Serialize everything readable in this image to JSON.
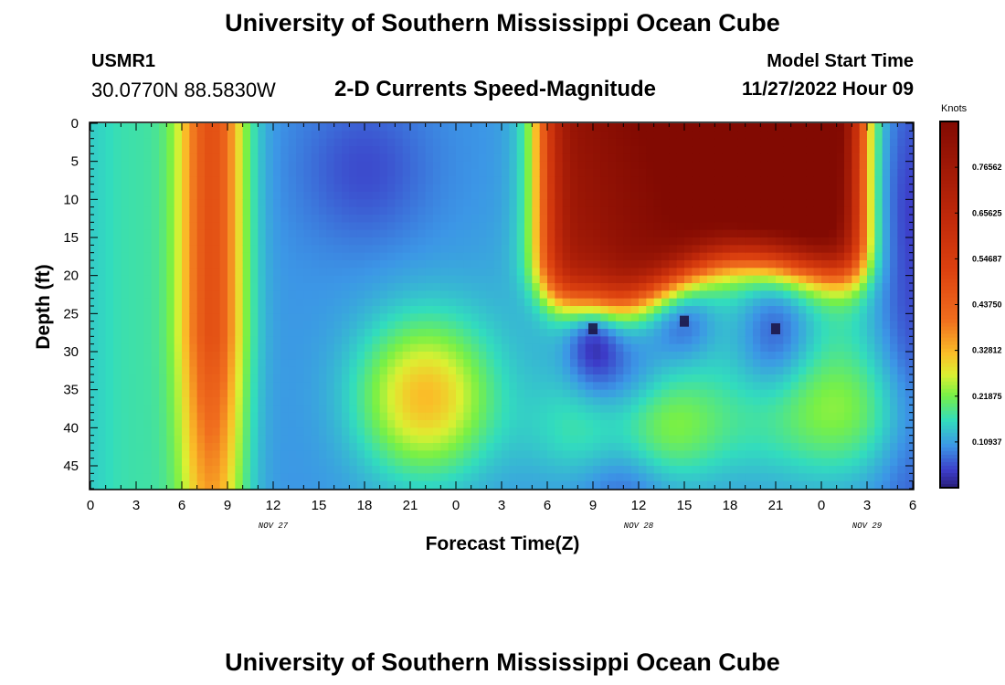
{
  "header": {
    "title": "University of Southern Mississippi Ocean Cube",
    "station_name": "USMR1",
    "station_coords": "30.0770N  88.5830W",
    "subtitle": "2-D Currents Speed-Magnitude",
    "model_start_label": "Model Start Time",
    "model_start_value": "11/27/2022 Hour 09"
  },
  "footer": {
    "title": "University of Southern Mississippi Ocean Cube"
  },
  "chart_data": {
    "type": "heatmap",
    "title": "2-D Currents Speed-Magnitude",
    "xlabel": "Forecast Time(Z)",
    "ylabel": "Depth (ft)",
    "colorbar_unit": "Knots",
    "x_tick_labels": [
      "0",
      "3",
      "6",
      "9",
      "12",
      "15",
      "18",
      "21",
      "0",
      "3",
      "6",
      "9",
      "12",
      "15",
      "18",
      "21",
      "0",
      "3",
      "6"
    ],
    "x_date_labels": [
      {
        "text": "NOV 27",
        "hour_index": 12
      },
      {
        "text": "NOV 28",
        "hour_index": 36
      },
      {
        "text": "NOV 29",
        "hour_index": 51
      }
    ],
    "x_range_hours": [
      0,
      54
    ],
    "y_tick_labels": [
      "0",
      "5",
      "10",
      "15",
      "20",
      "25",
      "30",
      "35",
      "40",
      "45"
    ],
    "y_range_ft": [
      0,
      48
    ],
    "y_inverted": true,
    "colorbar_labels": [
      "0.76562",
      "0.65625",
      "0.54687",
      "0.43750",
      "0.32812",
      "0.21875",
      "0.10937"
    ],
    "colorbar_range": [
      0,
      0.875
    ],
    "colors": {
      "low": "#3b3fbf",
      "mid_low": "#2fb8e8",
      "mid": "#7ef05a",
      "mid_high": "#f7e23a",
      "high": "#f08a20",
      "higher": "#d8400e",
      "max": "#8a1004"
    },
    "features": [
      {
        "description": "surface-to-bottom core",
        "hours": [
          6,
          10
        ],
        "depth_ft": [
          0,
          45
        ],
        "speed_knots": 0.45
      },
      {
        "description": "upper-layer high speed",
        "hours": [
          29,
          50
        ],
        "depth_ft": [
          0,
          22
        ],
        "speed_knots": 0.8
      },
      {
        "description": "mid-depth patch",
        "hours": [
          20,
          24
        ],
        "depth_ft": [
          30,
          42
        ],
        "speed_knots": 0.33
      },
      {
        "description": "near-zero point",
        "hours": [
          33,
          33
        ],
        "depth_ft": [
          27,
          27
        ],
        "speed_knots": 0.0
      },
      {
        "description": "near-zero point",
        "hours": [
          45,
          45
        ],
        "depth_ft": [
          27,
          27
        ],
        "speed_knots": 0.02
      },
      {
        "description": "near-zero point",
        "hours": [
          39,
          39
        ],
        "depth_ft": [
          26,
          26
        ],
        "speed_knots": 0.03
      }
    ]
  }
}
